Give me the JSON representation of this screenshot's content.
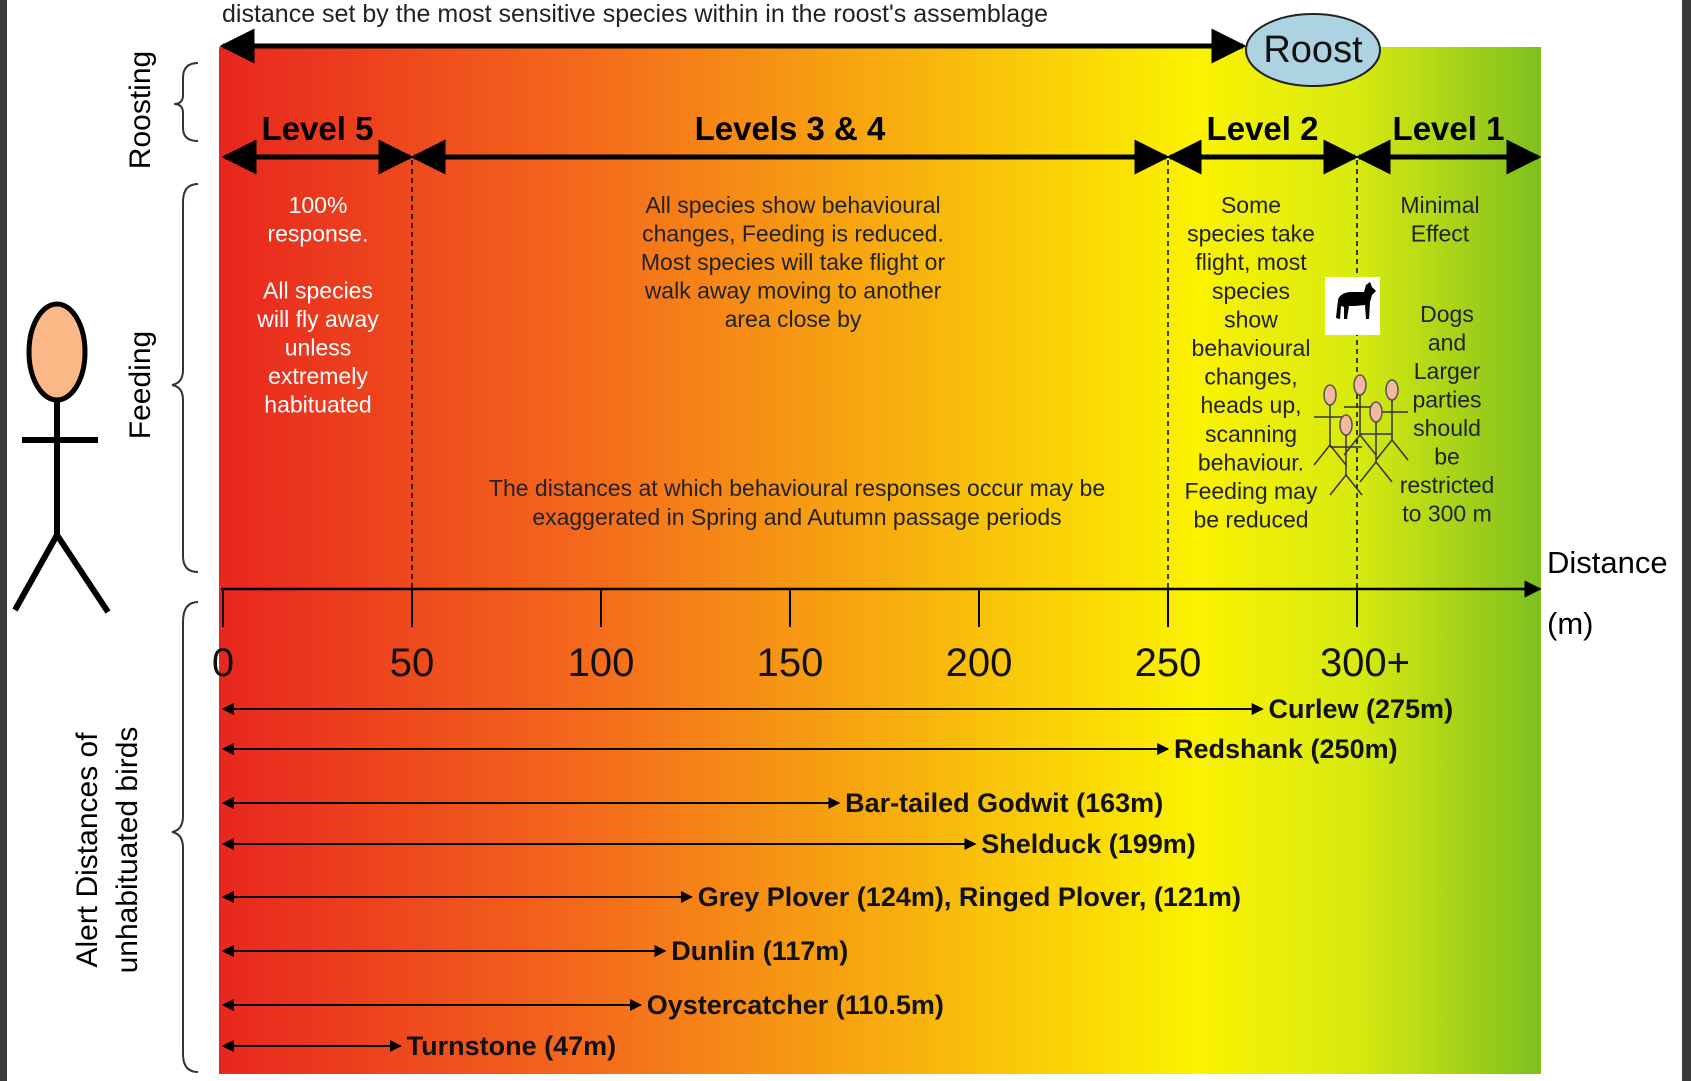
{
  "header": {
    "caption": "distance set by the most sensitive species within in the roost's assemblage",
    "roost_label": "Roost"
  },
  "side_labels": {
    "roosting": "Roosting",
    "feeding": "Feeding",
    "alert_line1": "Alert Distances of",
    "alert_line2": "unhabituated birds"
  },
  "levels": [
    {
      "label": "Level 5",
      "from": 0,
      "to": 50
    },
    {
      "label": "Levels 3 & 4",
      "from": 50,
      "to": 250
    },
    {
      "label": "Level 2",
      "from": 250,
      "to": 300
    },
    {
      "label": "Level 1",
      "from": 300,
      "to": 350
    }
  ],
  "descriptions": {
    "level5": [
      "100%",
      "response.",
      "",
      "All species",
      "will fly away",
      "unless",
      "extremely",
      "habituated"
    ],
    "level34": [
      "All species show behavioural",
      "changes, Feeding is reduced.",
      "Most species will take flight or",
      "walk away moving to another",
      "area close by"
    ],
    "seasonal_note": [
      "The distances at which behavioural responses occur may be",
      "exaggerated in Spring and Autumn passage periods"
    ],
    "level2": [
      "Some",
      "species take",
      "flight, most",
      "species",
      "show",
      "behavioural",
      "changes,",
      "heads up,",
      "scanning",
      "behaviour.",
      "Feeding may",
      "be reduced"
    ],
    "level1_top": [
      "Minimal",
      "Effect"
    ],
    "level1_dogs": [
      "Dogs",
      "and",
      "Larger",
      "parties",
      "should",
      "be",
      "restricted",
      "to 300 m"
    ]
  },
  "axis": {
    "label_line1": "Distance",
    "label_line2": "(m)",
    "ticks": [
      {
        "value": 0,
        "label": "0"
      },
      {
        "value": 50,
        "label": "50"
      },
      {
        "value": 100,
        "label": "100"
      },
      {
        "value": 150,
        "label": "150"
      },
      {
        "value": 200,
        "label": "200"
      },
      {
        "value": 250,
        "label": "250"
      },
      {
        "value": 300,
        "label": "300+"
      }
    ]
  },
  "species": [
    {
      "label": "Curlew (275m)",
      "distance": 275
    },
    {
      "label": "Redshank (250m)",
      "distance": 250
    },
    {
      "label": "Bar-tailed Godwit (163m)",
      "distance": 163
    },
    {
      "label": "Shelduck (199m)",
      "distance": 199
    },
    {
      "label": "Grey Plover (124m), Ringed Plover, (121m)",
      "distance": 124
    },
    {
      "label": "Dunlin (117m)",
      "distance": 117
    },
    {
      "label": "Oystercatcher (110.5m)",
      "distance": 110.5
    },
    {
      "label": "Turnstone (47m)",
      "distance": 47
    }
  ],
  "icons": [
    "stick-figure-icon",
    "dog-icon",
    "group-of-people-icon"
  ],
  "colors": {
    "red": "#e8261e",
    "orange": "#f58220",
    "yellow": "#f9f200",
    "green": "#7fbf1f"
  }
}
